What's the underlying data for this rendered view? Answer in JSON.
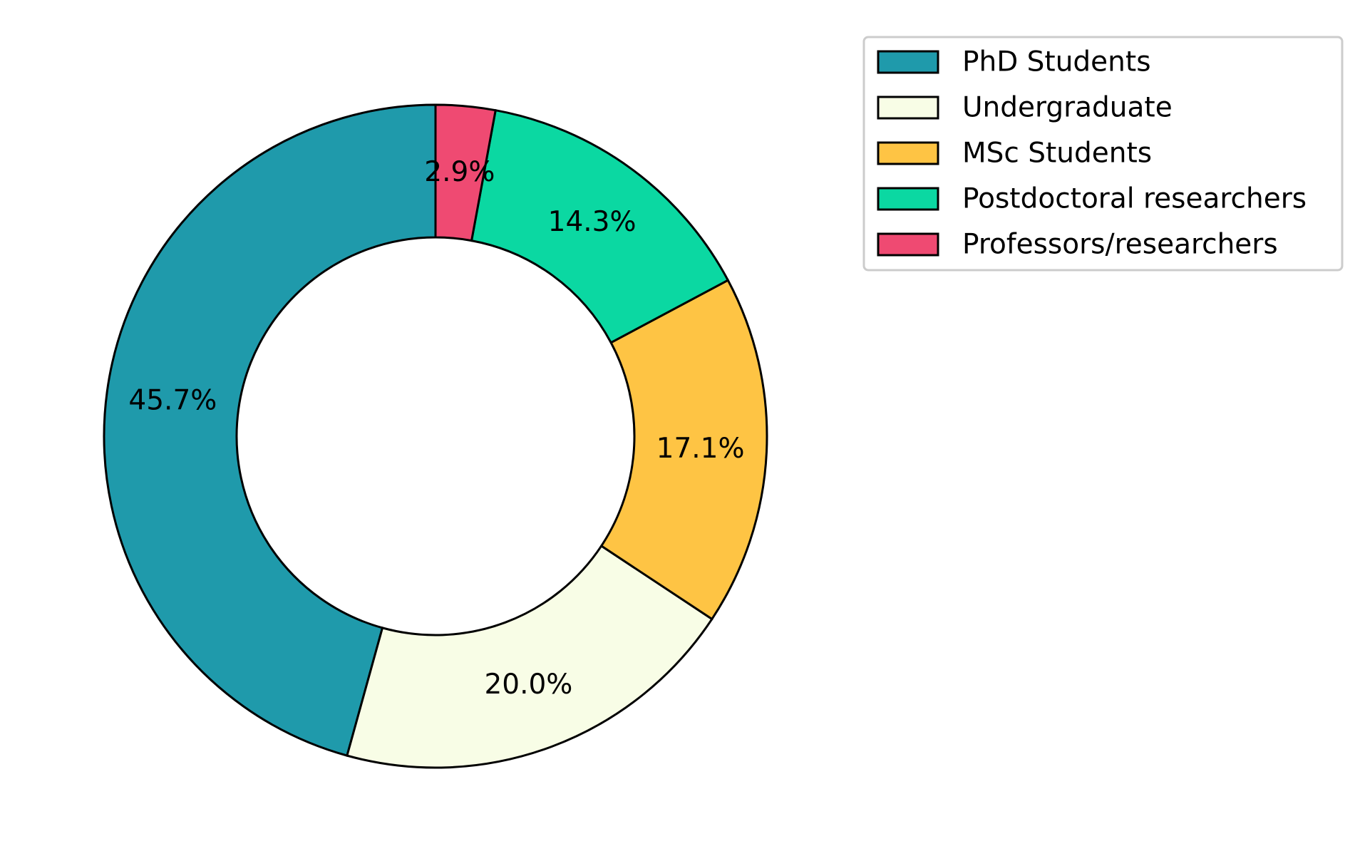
{
  "chart_data": {
    "type": "pie",
    "donut": true,
    "start_angle_deg": 90,
    "direction": "counterclockwise",
    "categories": [
      "PhD Students",
      "Undergraduate",
      "MSc Students",
      "Postdoctoral researchers",
      "Professors/researchers"
    ],
    "values": [
      45.7,
      20.0,
      17.1,
      14.3,
      2.9
    ],
    "labels": [
      "45.7%",
      "20.0%",
      "17.1%",
      "14.3%",
      "2.9%"
    ],
    "colors": [
      "#1f9aab",
      "#f8fde6",
      "#fec444",
      "#0bd8a2",
      "#ef4a72"
    ],
    "legend": {
      "placement": "top-right",
      "entries": [
        "PhD Students",
        "Undergraduate",
        "MSc Students",
        "Postdoctoral researchers",
        "Professors/researchers"
      ]
    }
  }
}
